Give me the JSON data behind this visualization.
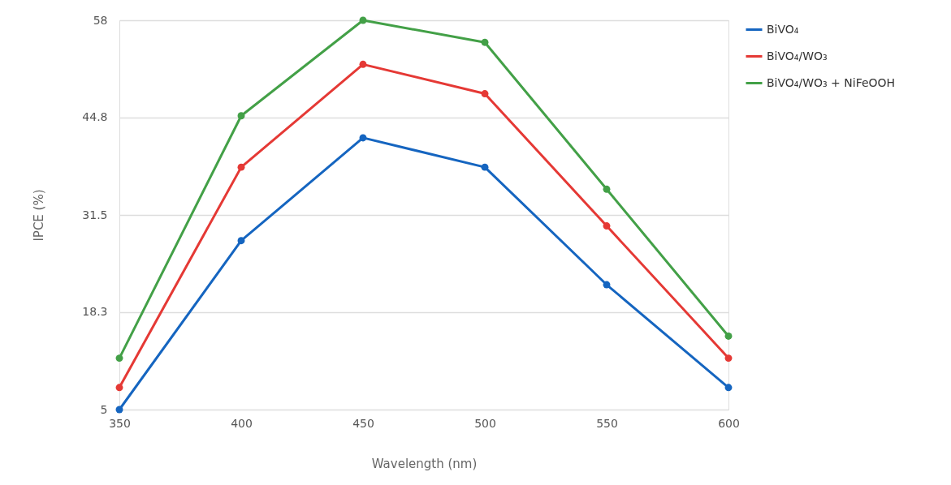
{
  "chart_data": {
    "type": "line",
    "xlabel": "Wavelength (nm)",
    "ylabel": "IPCE (%)",
    "x": [
      350,
      400,
      450,
      500,
      550,
      600
    ],
    "series": [
      {
        "name": "BiVO₄",
        "color": "#1565c0",
        "values": [
          5,
          28,
          42,
          38,
          22,
          8
        ]
      },
      {
        "name": "BiVO₄/WO₃",
        "color": "#e53935",
        "values": [
          8,
          38,
          52,
          48,
          30,
          12
        ]
      },
      {
        "name": "BiVO₄/WO₃ + NiFeOOH",
        "color": "#43a047",
        "values": [
          12,
          45,
          58,
          55,
          35,
          15
        ]
      }
    ],
    "xlim": [
      350,
      600
    ],
    "xticks": [
      350,
      400,
      450,
      500,
      550,
      600
    ],
    "ylim": [
      5,
      58
    ],
    "yticks": [
      5,
      18.3,
      31.5,
      44.8,
      58
    ],
    "grid": "y",
    "legend": "top right",
    "marker": "circle",
    "line_style": "solid"
  }
}
